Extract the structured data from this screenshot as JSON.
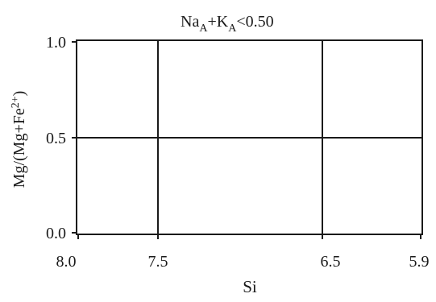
{
  "title": {
    "na": "Na",
    "na_sub": "A",
    "plus": "+K",
    "k_sub": "A",
    "rest": "<0.50"
  },
  "x_axis": {
    "label": "Si",
    "ticks": [
      "8.0",
      "7.5",
      "6.5",
      "5.9"
    ]
  },
  "y_axis": {
    "label_main": "Mg/(Mg+Fe",
    "label_sup": "2+",
    "label_end": ")",
    "ticks": [
      "1.0",
      "0.5",
      "0.0"
    ]
  },
  "colors": {
    "line": "#1a1a1a",
    "background": "#ffffff"
  }
}
